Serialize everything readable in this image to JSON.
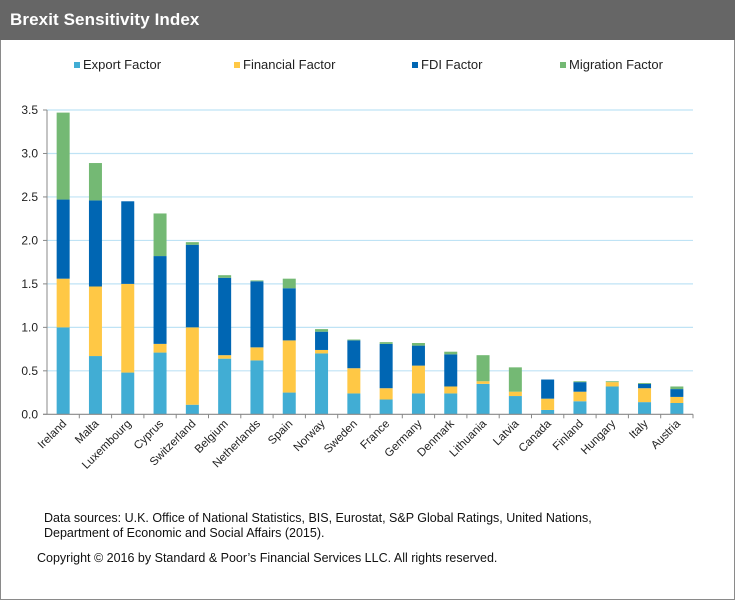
{
  "header": {
    "title": "Brexit Sensitivity Index"
  },
  "colors": {
    "export": "#41ADD4",
    "financial": "#FFC845",
    "fdi": "#0066B3",
    "migration": "#74B974",
    "gridline": "#BFE3F5",
    "axis": "#888888",
    "title_bar": "#666666"
  },
  "legend": [
    {
      "label": "Export Factor",
      "color": "#41ADD4"
    },
    {
      "label": "Financial Factor",
      "color": "#FFC845"
    },
    {
      "label": "FDI Factor",
      "color": "#0066B3"
    },
    {
      "label": "Migration Factor",
      "color": "#74B974"
    }
  ],
  "chart_data": {
    "type": "bar",
    "stacked": true,
    "title": "Brexit Sensitivity Index",
    "xlabel": "",
    "ylabel": "",
    "ylim": [
      0,
      3.5
    ],
    "yticks": [
      "0.0",
      "0.5",
      "1.0",
      "1.5",
      "2.0",
      "2.5",
      "3.0",
      "3.5"
    ],
    "ytick_values": [
      0,
      0.5,
      1.0,
      1.5,
      2.0,
      2.5,
      3.0,
      3.5
    ],
    "grid": true,
    "legend_position": "top",
    "categories": [
      "Ireland",
      "Malta",
      "Luxembourg",
      "Cyprus",
      "Switzerland",
      "Belgium",
      "Netherlands",
      "Spain",
      "Norway",
      "Sweden",
      "France",
      "Germany",
      "Denmark",
      "Lithuania",
      "Latvia",
      "Canada",
      "Finland",
      "Hungary",
      "Italy",
      "Austria"
    ],
    "series": [
      {
        "name": "Export Factor",
        "values": [
          1.0,
          0.67,
          0.48,
          0.71,
          0.11,
          0.64,
          0.62,
          0.25,
          0.7,
          0.24,
          0.17,
          0.24,
          0.24,
          0.35,
          0.21,
          0.05,
          0.15,
          0.32,
          0.14,
          0.13
        ]
      },
      {
        "name": "Financial Factor",
        "values": [
          0.56,
          0.8,
          1.02,
          0.1,
          0.89,
          0.04,
          0.15,
          0.6,
          0.04,
          0.29,
          0.13,
          0.32,
          0.08,
          0.03,
          0.05,
          0.13,
          0.11,
          0.05,
          0.16,
          0.07
        ]
      },
      {
        "name": "FDI Factor",
        "values": [
          0.91,
          0.99,
          0.95,
          1.01,
          0.95,
          0.89,
          0.76,
          0.6,
          0.21,
          0.32,
          0.51,
          0.23,
          0.37,
          0.0,
          0.0,
          0.22,
          0.11,
          0.0,
          0.05,
          0.09
        ]
      },
      {
        "name": "Migration Factor",
        "values": [
          1.0,
          0.43,
          0.0,
          0.49,
          0.03,
          0.03,
          0.01,
          0.11,
          0.03,
          0.01,
          0.02,
          0.03,
          0.03,
          0.3,
          0.28,
          0.0,
          0.01,
          0.01,
          0.01,
          0.03
        ]
      }
    ],
    "totals": [
      3.47,
      2.89,
      2.45,
      2.31,
      1.98,
      1.6,
      1.54,
      1.56,
      0.98,
      0.86,
      0.83,
      0.82,
      0.72,
      0.68,
      0.54,
      0.4,
      0.38,
      0.38,
      0.36,
      0.32
    ]
  },
  "footer": {
    "sources_line1": "Data sources: U.K. Office of National Statistics, BIS, Eurostat, S&P Global Ratings, United Nations,",
    "sources_line2": "Department of Economic and Social Affairs (2015).",
    "copyright": "Copyright © 2016 by Standard & Poor’s Financial Services LLC. All rights reserved."
  }
}
